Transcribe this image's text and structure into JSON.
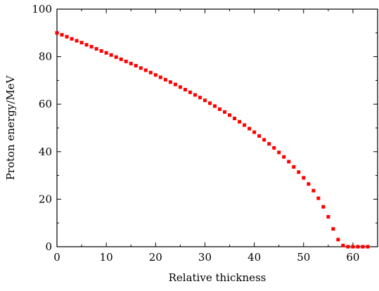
{
  "chart_data": {
    "type": "scatter",
    "title": "",
    "xlabel": "Relative thickness",
    "ylabel": "Proton energy/MeV",
    "xlim": [
      0,
      65
    ],
    "ylim": [
      0,
      100
    ],
    "x_ticks": [
      0,
      10,
      20,
      30,
      40,
      50,
      60
    ],
    "x_tick_labels": [
      "0",
      "10",
      "20",
      "30",
      "40",
      "50",
      "60"
    ],
    "y_ticks": [
      0,
      20,
      40,
      60,
      80,
      100
    ],
    "y_tick_labels": [
      "0",
      "20",
      "40",
      "60",
      "80",
      "100"
    ],
    "grid": false,
    "legend": "none",
    "marker_color": "#ff0000",
    "marker": "square",
    "series": [
      {
        "x": [
          0,
          1,
          2,
          3,
          4,
          5,
          6,
          7,
          8,
          9,
          10,
          11,
          12,
          13,
          14,
          15,
          16,
          17,
          18,
          19,
          20,
          21,
          22,
          23,
          24,
          25,
          26,
          27,
          28,
          29,
          30,
          31,
          32,
          33,
          34,
          35,
          36,
          37,
          38,
          39,
          40,
          41,
          42,
          43,
          44,
          45,
          46,
          47,
          48,
          49,
          50,
          51,
          52,
          53,
          54,
          55,
          56,
          57,
          58,
          59,
          60,
          61,
          62,
          63
        ],
        "y": [
          90.0,
          89.2,
          88.4,
          87.5,
          86.7,
          85.9,
          85.0,
          84.2,
          83.3,
          82.4,
          81.6,
          80.7,
          79.8,
          78.9,
          78.0,
          77.1,
          76.2,
          75.2,
          74.3,
          73.3,
          72.3,
          71.3,
          70.3,
          69.3,
          68.3,
          67.2,
          66.1,
          65.0,
          63.9,
          62.8,
          61.6,
          60.4,
          59.2,
          57.9,
          56.7,
          55.4,
          54.0,
          52.6,
          51.2,
          49.7,
          48.2,
          46.6,
          45.0,
          43.3,
          41.6,
          39.7,
          37.8,
          35.8,
          33.6,
          31.4,
          29.0,
          26.4,
          23.6,
          20.4,
          16.8,
          12.6,
          7.5,
          3.0,
          0.5,
          0.0,
          0.0,
          0.0,
          0.0,
          0.0
        ]
      }
    ]
  }
}
